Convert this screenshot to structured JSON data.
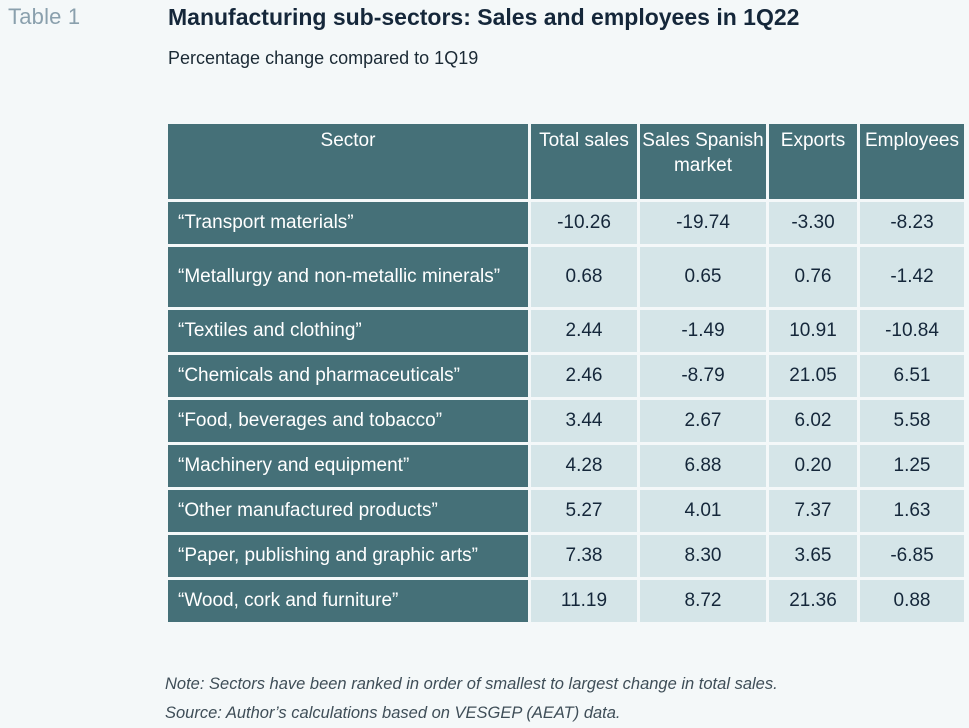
{
  "label": "Table 1",
  "title": "Manufacturing sub-sectors: Sales and employees in 1Q22",
  "subtitle": "Percentage change compared to 1Q19",
  "note": "Note: Sectors have been ranked in order of smallest to largest change in total sales.",
  "source": "Source: Author’s calculations based on VESGEP (AEAT) data.",
  "colors": {
    "header_bg": "#457078",
    "cell_bg": "#d5e5e8",
    "page_bg": "#f4f8f9"
  },
  "chart_data": {
    "type": "table",
    "columns": [
      "Sector",
      "Total sales",
      "Sales Spanish market",
      "Exports",
      "Employees"
    ],
    "rows": [
      {
        "sector": "“Transport materials”",
        "values": [
          "-10.26",
          "-19.74",
          "-3.30",
          "-8.23"
        ]
      },
      {
        "sector": "“Metallurgy and non-metallic minerals”",
        "values": [
          "0.68",
          "0.65",
          "0.76",
          "-1.42"
        ]
      },
      {
        "sector": "“Textiles and clothing”",
        "values": [
          "2.44",
          "-1.49",
          "10.91",
          "-10.84"
        ]
      },
      {
        "sector": "“Chemicals and pharmaceuticals”",
        "values": [
          "2.46",
          "-8.79",
          "21.05",
          "6.51"
        ]
      },
      {
        "sector": "“Food, beverages and tobacco”",
        "values": [
          "3.44",
          "2.67",
          "6.02",
          "5.58"
        ]
      },
      {
        "sector": "“Machinery and equipment”",
        "values": [
          "4.28",
          "6.88",
          "0.20",
          "1.25"
        ]
      },
      {
        "sector": "“Other manufactured products”",
        "values": [
          "5.27",
          "4.01",
          "7.37",
          "1.63"
        ]
      },
      {
        "sector": "“Paper, publishing and graphic arts”",
        "values": [
          "7.38",
          "8.30",
          "3.65",
          "-6.85"
        ]
      },
      {
        "sector": "“Wood, cork and furniture”",
        "values": [
          "11.19",
          "8.72",
          "21.36",
          "0.88"
        ]
      }
    ]
  }
}
